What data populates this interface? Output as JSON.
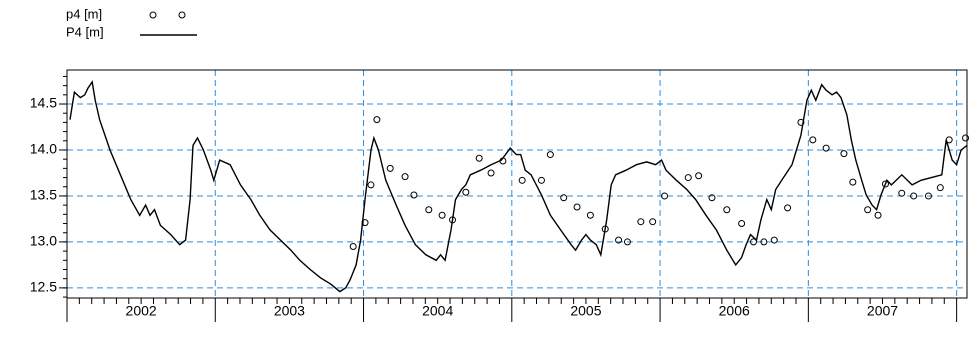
{
  "chart_data": {
    "type": "line",
    "xlim": [
      2002,
      2008.07
    ],
    "ylim": [
      12.39,
      14.87
    ],
    "xticks": [
      2002,
      2003,
      2004,
      2005,
      2006,
      2007,
      2008
    ],
    "year_labels": [
      "2002",
      "2003",
      "2004",
      "2005",
      "2006",
      "2007"
    ],
    "yticks": [
      12.5,
      {
        "value": 13,
        "label": "13.0"
      },
      13.5,
      {
        "value": 14,
        "label": "14.0"
      },
      14.5
    ],
    "grid": true,
    "grid_color": "#2f8ee0",
    "series": [
      {
        "name": "p4 [m]",
        "style": "markers",
        "color": "#000000",
        "x": [
          2003.93,
          2004.01,
          2004.05,
          2004.09,
          2004.18,
          2004.28,
          2004.34,
          2004.44,
          2004.53,
          2004.6,
          2004.69,
          2004.78,
          2004.86,
          2004.94,
          2005.07,
          2005.2,
          2005.26,
          2005.35,
          2005.44,
          2005.53,
          2005.63,
          2005.72,
          2005.78,
          2005.87,
          2005.95,
          2006.03,
          2006.19,
          2006.26,
          2006.35,
          2006.45,
          2006.55,
          2006.63,
          2006.7,
          2006.77,
          2006.86,
          2006.95,
          2007.03,
          2007.12,
          2007.24,
          2007.3,
          2007.4,
          2007.47,
          2007.52,
          2007.63,
          2007.71,
          2007.81,
          2007.89,
          2007.95,
          2008.06
        ],
        "values": [
          12.95,
          13.21,
          13.62,
          14.33,
          13.8,
          13.71,
          13.51,
          13.35,
          13.29,
          13.24,
          13.54,
          13.91,
          13.75,
          13.88,
          13.67,
          13.67,
          13.95,
          13.48,
          13.38,
          13.29,
          13.14,
          13.02,
          13.0,
          13.22,
          13.22,
          13.5,
          13.7,
          13.72,
          13.48,
          13.35,
          13.2,
          13.0,
          13.0,
          13.02,
          13.37,
          14.3,
          14.11,
          14.02,
          13.96,
          13.65,
          13.35,
          13.29,
          13.63,
          13.53,
          13.5,
          13.5,
          13.59,
          14.11,
          14.13
        ]
      },
      {
        "name": "P4 [m]",
        "style": "line",
        "color": "#000000",
        "x": [
          2002.02,
          2002.05,
          2002.09,
          2002.12,
          2002.14,
          2002.17,
          2002.19,
          2002.22,
          2002.29,
          2002.36,
          2002.43,
          2002.49,
          2002.53,
          2002.56,
          2002.59,
          2002.63,
          2002.7,
          2002.76,
          2002.8,
          2002.83,
          2002.85,
          2002.88,
          2002.92,
          2002.97,
          2002.99,
          2003.03,
          2003.1,
          2003.17,
          2003.24,
          2003.3,
          2003.37,
          2003.44,
          2003.51,
          2003.57,
          2003.64,
          2003.71,
          2003.78,
          2003.84,
          2003.88,
          2003.91,
          2003.95,
          2003.98,
          2004.01,
          2004.05,
          2004.07,
          2004.1,
          2004.15,
          2004.22,
          2004.28,
          2004.35,
          2004.42,
          2004.49,
          2004.52,
          2004.55,
          2004.59,
          2004.62,
          2004.66,
          2004.69,
          2004.72,
          2004.79,
          2004.86,
          2004.93,
          2004.99,
          2005.03,
          2005.06,
          2005.09,
          2005.13,
          2005.2,
          2005.26,
          2005.33,
          2005.4,
          2005.43,
          2005.47,
          2005.5,
          2005.53,
          2005.57,
          2005.6,
          2005.64,
          2005.67,
          2005.7,
          2005.77,
          2005.84,
          2005.91,
          2005.97,
          2006.01,
          2006.04,
          2006.11,
          2006.18,
          2006.24,
          2006.31,
          2006.38,
          2006.45,
          2006.51,
          2006.55,
          2006.58,
          2006.61,
          2006.65,
          2006.68,
          2006.72,
          2006.75,
          2006.78,
          2006.82,
          2006.89,
          2006.95,
          2006.99,
          2007.02,
          2007.05,
          2007.09,
          2007.12,
          2007.16,
          2007.19,
          2007.22,
          2007.26,
          2007.29,
          2007.32,
          2007.36,
          2007.39,
          2007.43,
          2007.46,
          2007.49,
          2007.53,
          2007.56,
          2007.63,
          2007.7,
          2007.76,
          2007.83,
          2007.9,
          2007.93,
          2007.97,
          2008.0,
          2008.03,
          2008.07
        ],
        "values": [
          14.33,
          14.63,
          14.57,
          14.6,
          14.67,
          14.74,
          14.54,
          14.33,
          14.0,
          13.73,
          13.46,
          13.29,
          13.4,
          13.29,
          13.35,
          13.18,
          13.08,
          12.97,
          13.02,
          13.46,
          14.05,
          14.13,
          14.0,
          13.78,
          13.67,
          13.89,
          13.84,
          13.62,
          13.46,
          13.29,
          13.13,
          13.02,
          12.91,
          12.8,
          12.7,
          12.61,
          12.54,
          12.46,
          12.5,
          12.59,
          12.75,
          13.02,
          13.46,
          14.0,
          14.13,
          14.0,
          13.67,
          13.4,
          13.18,
          12.97,
          12.86,
          12.8,
          12.86,
          12.8,
          13.13,
          13.46,
          13.57,
          13.62,
          13.73,
          13.78,
          13.84,
          13.89,
          14.02,
          13.95,
          13.95,
          13.78,
          13.73,
          13.51,
          13.29,
          13.13,
          12.97,
          12.91,
          13.02,
          13.08,
          13.02,
          12.97,
          12.86,
          13.24,
          13.62,
          13.73,
          13.78,
          13.84,
          13.87,
          13.84,
          13.89,
          13.78,
          13.67,
          13.57,
          13.46,
          13.29,
          13.13,
          12.91,
          12.75,
          12.83,
          12.97,
          13.08,
          13.02,
          13.24,
          13.46,
          13.35,
          13.57,
          13.67,
          13.84,
          14.16,
          14.54,
          14.65,
          14.54,
          14.71,
          14.65,
          14.6,
          14.63,
          14.57,
          14.38,
          14.11,
          13.89,
          13.67,
          13.51,
          13.4,
          13.35,
          13.51,
          13.67,
          13.62,
          13.73,
          13.62,
          13.67,
          13.7,
          13.73,
          14.11,
          13.89,
          13.84,
          14.0,
          14.05
        ]
      }
    ]
  }
}
